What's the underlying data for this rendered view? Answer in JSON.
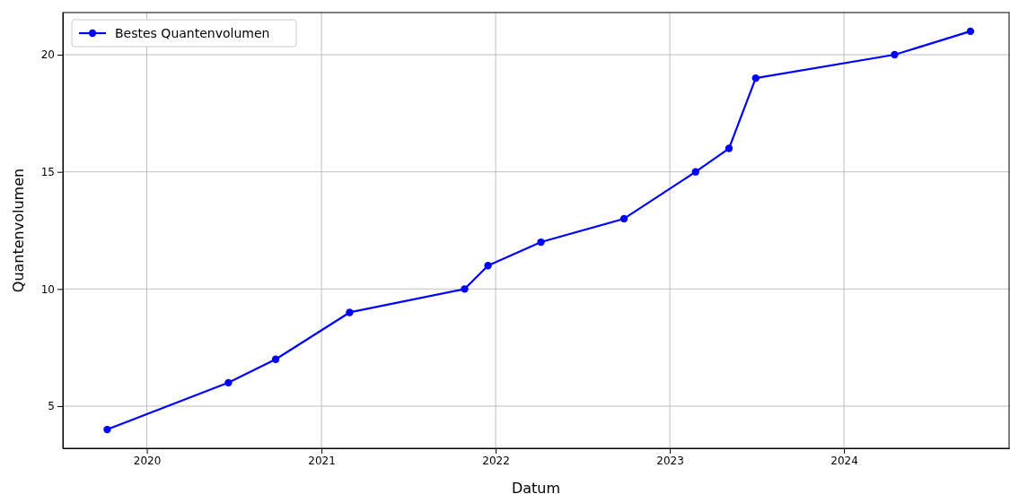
{
  "chart_data": {
    "type": "line",
    "xlabel": "Datum",
    "ylabel": "Quantenvolumen",
    "x": [
      "2019-10-10",
      "2020-06-20",
      "2020-09-27",
      "2021-03-01",
      "2021-10-28",
      "2021-12-16",
      "2022-04-06",
      "2022-09-27",
      "2023-02-24",
      "2023-05-05",
      "2023-06-30",
      "2024-04-16",
      "2024-09-22"
    ],
    "series": [
      {
        "name": "Bestes Quantenvolumen",
        "color": "#0000ff",
        "values": [
          4,
          6,
          7,
          9,
          10,
          11,
          12,
          13,
          15,
          16,
          19,
          20,
          21
        ]
      }
    ],
    "xlim": [
      "2019-07-09",
      "2024-12-12"
    ],
    "xticks": [
      "2020",
      "2021",
      "2022",
      "2023",
      "2024"
    ],
    "ylim": [
      3.2,
      21.8
    ],
    "yticks": [
      5,
      10,
      15,
      20
    ],
    "grid": true,
    "legend": "top left",
    "marker": "circle",
    "line_style": "solid"
  }
}
